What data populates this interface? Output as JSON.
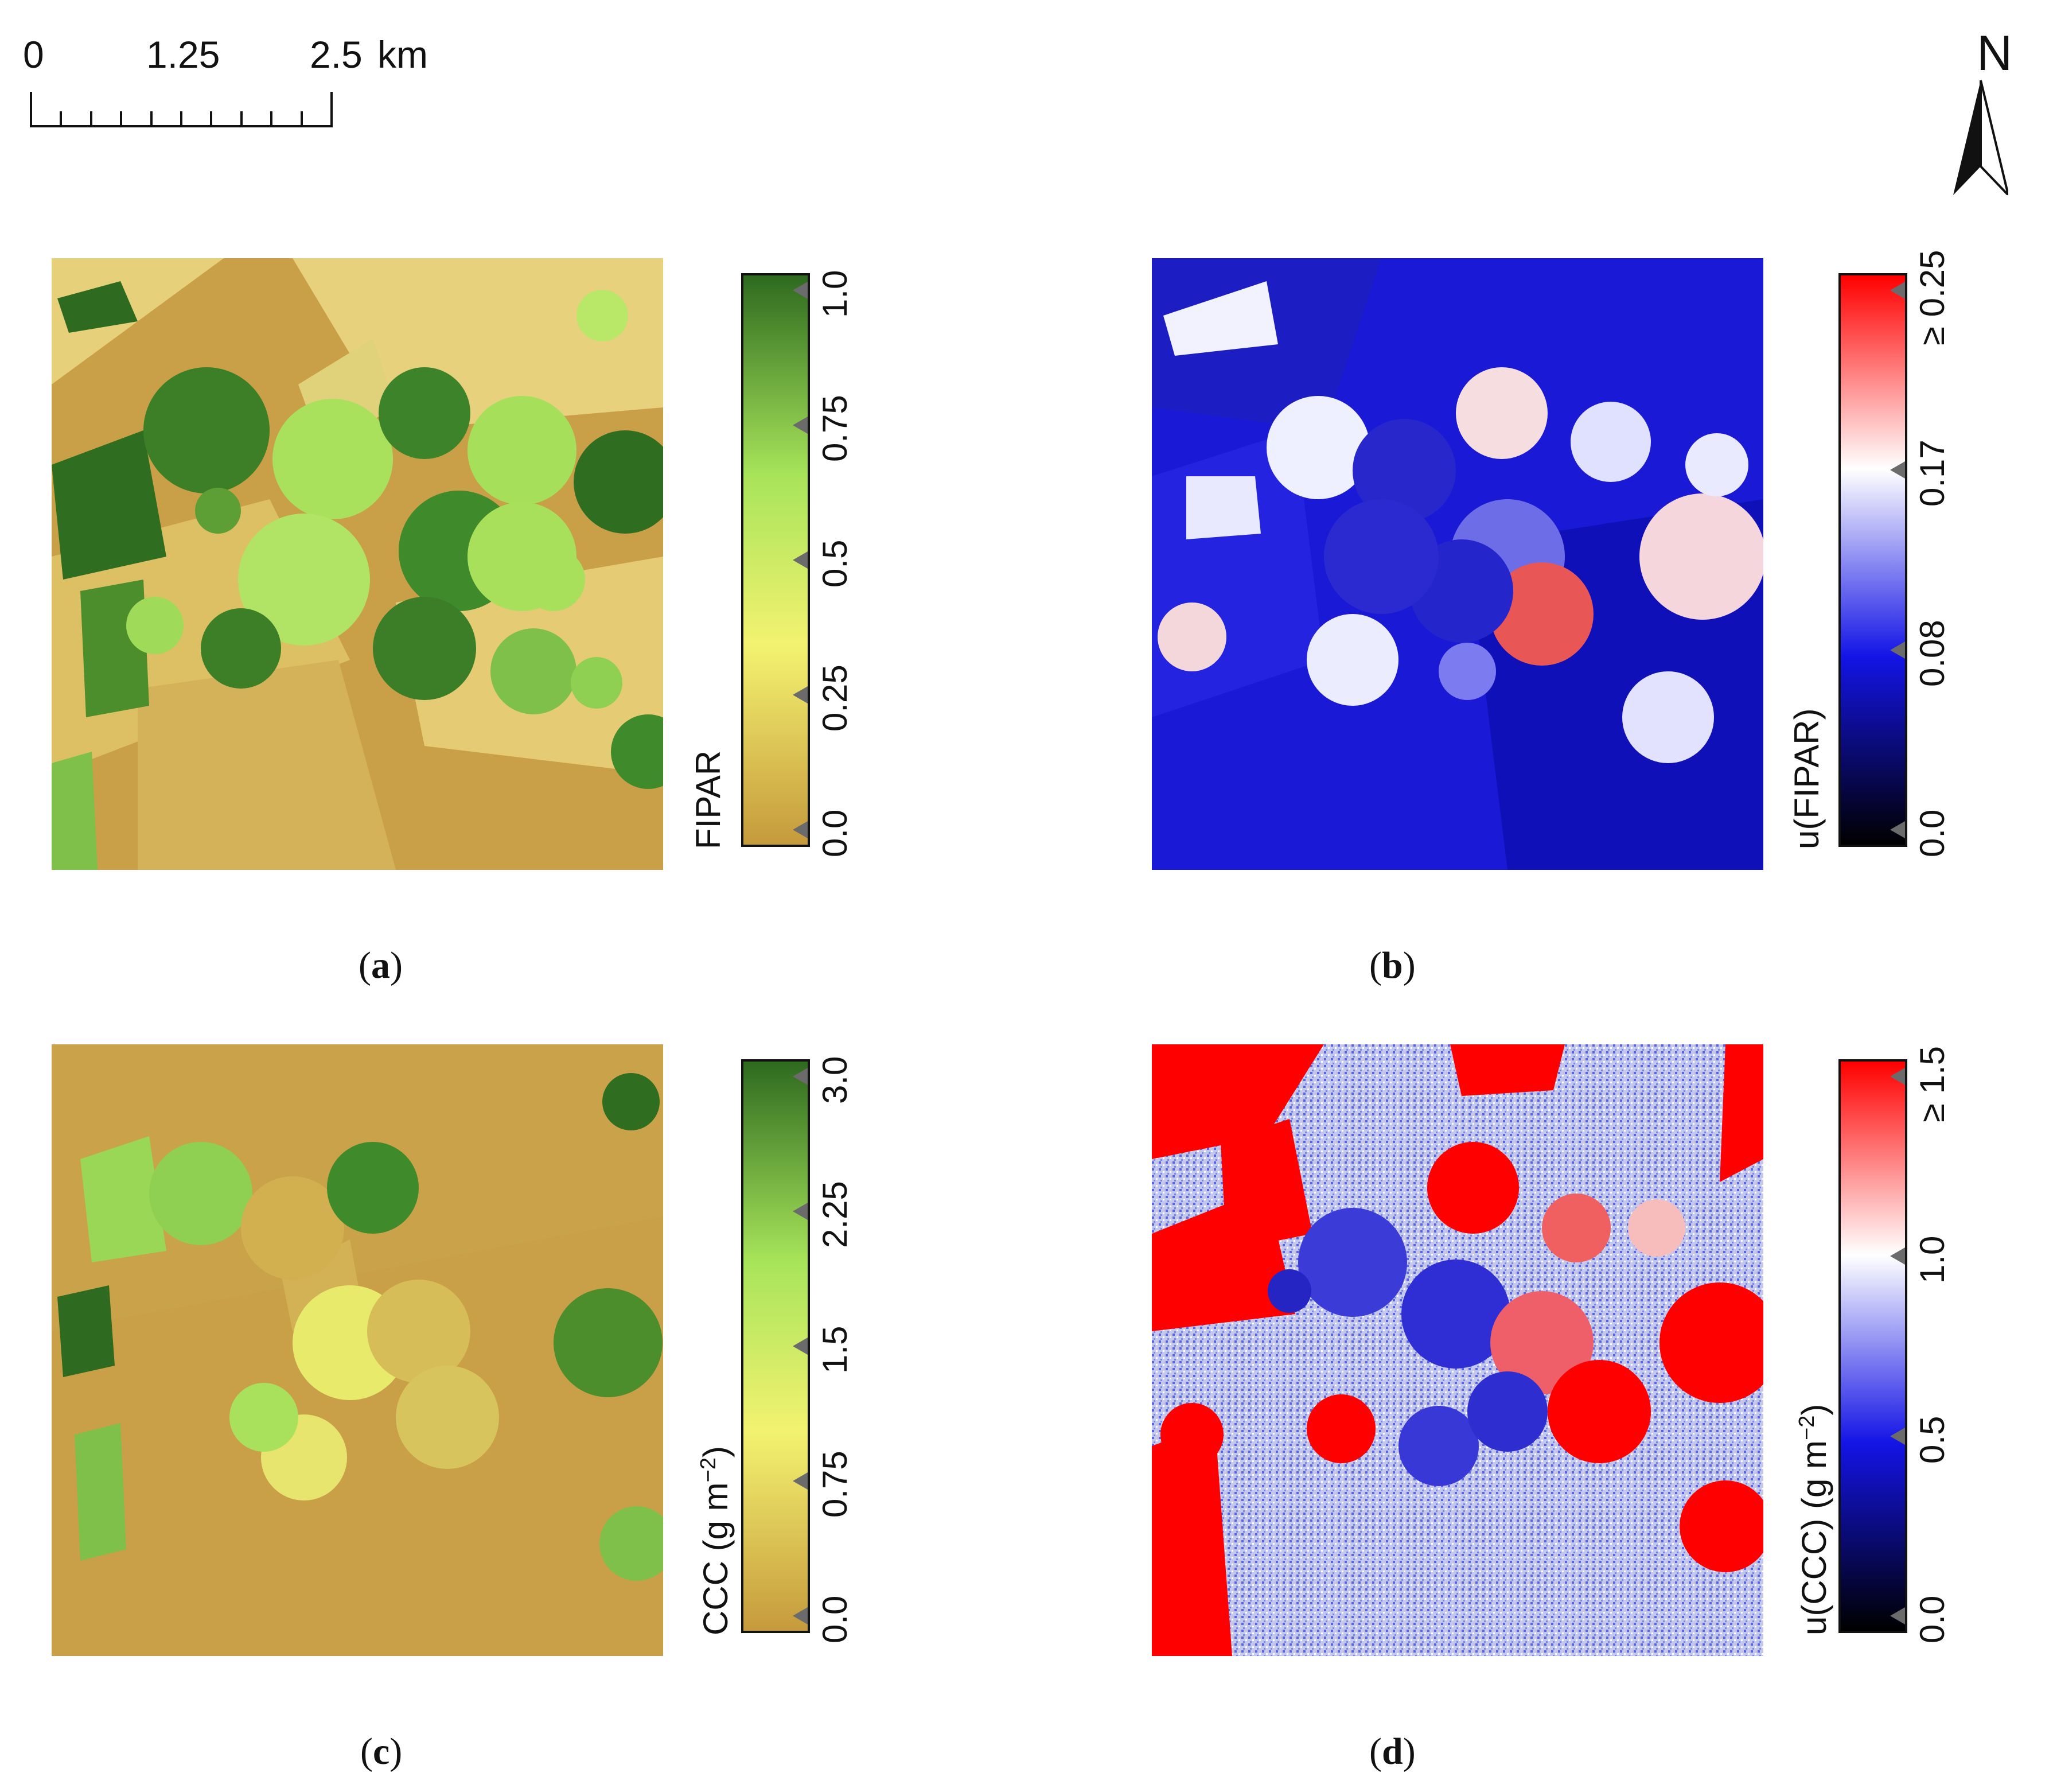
{
  "scale_bar": {
    "labels": [
      "0",
      "1.25",
      "2.5"
    ],
    "unit": "km"
  },
  "north_arrow": {
    "label": "N"
  },
  "panels": [
    {
      "id": "a",
      "caption": "a",
      "colorbar": {
        "title": "FIPAR",
        "ticks": [
          "0.0",
          "0.25",
          "0.5",
          "0.75",
          "1.0"
        ],
        "colors": [
          "#c69a3c",
          "#f3f270",
          "#a7e45a",
          "#2e6a1f"
        ],
        "palette_name": "brown-yellow-green"
      }
    },
    {
      "id": "b",
      "caption": "b",
      "colorbar": {
        "title": "u(FIPAR)",
        "ticks": [
          "0.0",
          "0.08",
          "0.17",
          "≥ 0.25"
        ],
        "colors": [
          "#000000",
          "#1414e6",
          "#ffffff",
          "#ff0000"
        ],
        "palette_name": "black-blue-white-red"
      }
    },
    {
      "id": "c",
      "caption": "c",
      "colorbar": {
        "title_main": "CCC (g m",
        "title_sup": "−2",
        "title_end": ")",
        "ticks": [
          "0.0",
          "0.75",
          "1.5",
          "2.25",
          "3.0"
        ],
        "colors": [
          "#c69a3c",
          "#f3f270",
          "#a7e45a",
          "#2e6a1f"
        ],
        "palette_name": "brown-yellow-green"
      }
    },
    {
      "id": "d",
      "caption": "d",
      "colorbar": {
        "title_main": "u(CCC) (g m",
        "title_sup": "−2",
        "title_end": ")",
        "ticks": [
          "0.0",
          "0.5",
          "1.0",
          "≥ 1.5"
        ],
        "colors": [
          "#000000",
          "#1414e6",
          "#ffffff",
          "#ff0000"
        ],
        "palette_name": "black-blue-white-red"
      }
    }
  ]
}
